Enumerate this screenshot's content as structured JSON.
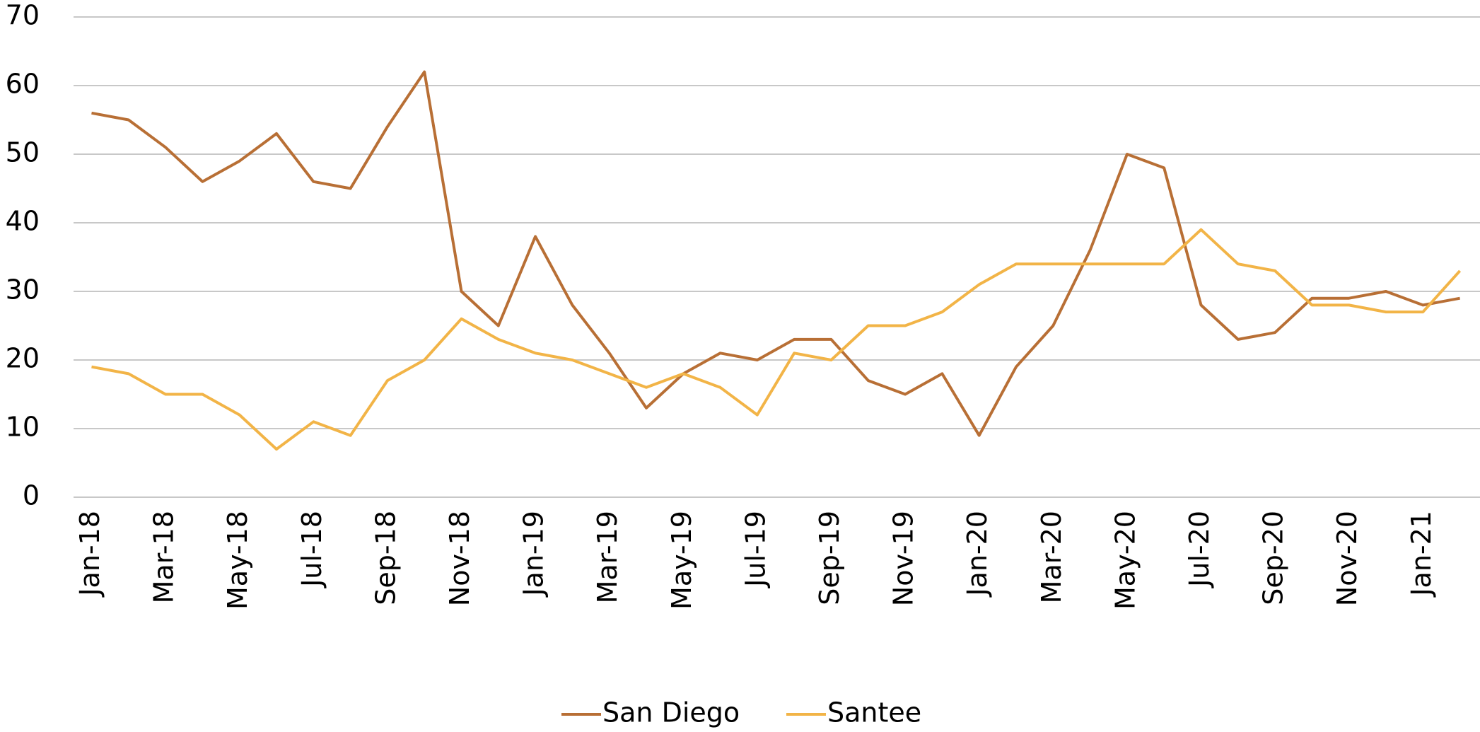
{
  "chart_data": {
    "type": "line",
    "categories": [
      "Jan-18",
      null,
      "Mar-18",
      null,
      "May-18",
      null,
      "Jul-18",
      null,
      "Sep-18",
      null,
      "Nov-18",
      null,
      "Jan-19",
      null,
      "Mar-19",
      null,
      "May-19",
      null,
      "Jul-19",
      null,
      "Sep-19",
      null,
      "Nov-19",
      null,
      "Jan-20",
      null,
      "Mar-20",
      null,
      "May-20",
      null,
      "Jul-20",
      null,
      "Sep-20",
      null,
      "Nov-20",
      null,
      "Jan-21",
      null
    ],
    "series": [
      {
        "name": "San Diego",
        "color": "#b86f35",
        "values": [
          56,
          55,
          51,
          46,
          49,
          53,
          46,
          45,
          54,
          62,
          30,
          25,
          38,
          28,
          21,
          13,
          18,
          21,
          20,
          23,
          23,
          17,
          15,
          18,
          9,
          19,
          25,
          36,
          50,
          48,
          28,
          23,
          24,
          29,
          29,
          30,
          28,
          29
        ]
      },
      {
        "name": "Santee",
        "color": "#f2b447",
        "values": [
          19,
          18,
          15,
          15,
          12,
          7,
          11,
          9,
          17,
          20,
          26,
          23,
          21,
          20,
          18,
          16,
          18,
          16,
          12,
          21,
          20,
          25,
          25,
          27,
          31,
          34,
          34,
          34,
          34,
          34,
          39,
          34,
          33,
          28,
          28,
          27,
          27,
          33
        ]
      }
    ],
    "ylim": [
      0,
      70
    ],
    "yticks": [
      0,
      10,
      20,
      30,
      40,
      50,
      60,
      70
    ],
    "grid": true,
    "legend": "bottom"
  }
}
